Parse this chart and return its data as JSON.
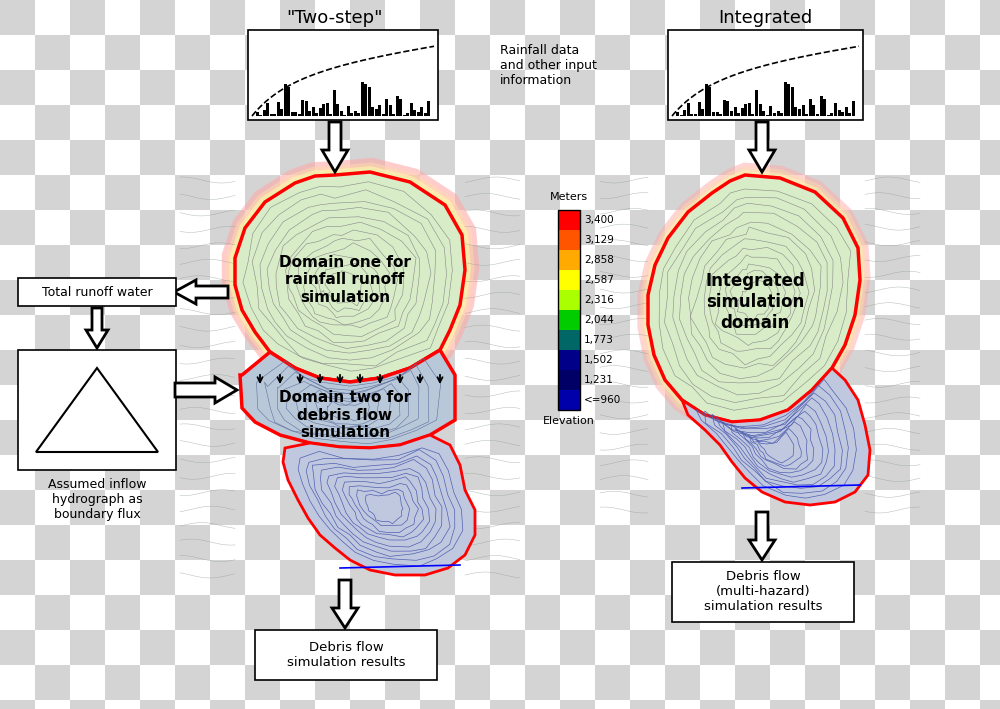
{
  "title_left": "\"Two-step\"",
  "title_right": "Integrated",
  "rainfall_label": "Rainfall data\nand other input\ninformation",
  "total_runoff_label": "Total runoff water",
  "hydrograph_label": "Assumed inflow\nhydrograph as\nboundary flux",
  "domain_one_label": "Domain one for\nrainfall runoff\nsimulation",
  "domain_two_label": "Domain two for\ndebris flow\nsimulation",
  "integrated_domain_label": "Integrated\nsimulation\ndomain",
  "debris_left_label": "Debris flow\nsimulation results",
  "debris_right_label": "Debris flow\n(multi-hazard)\nsimulation results",
  "colorbar_label": "Meters",
  "colorbar_values": [
    "3,400",
    "3,129",
    "2,858",
    "2,587",
    "2,316",
    "2,044",
    "1,773",
    "1,502",
    "1,231",
    "<=960"
  ],
  "colorbar_colors": [
    "#ff0000",
    "#ff5500",
    "#ffaa00",
    "#ffff00",
    "#aaff00",
    "#00cc00",
    "#006666",
    "#000088",
    "#000066",
    "#0000aa"
  ],
  "elevation_label": "Elevation",
  "checker_color1": "#d4d4d4",
  "checker_color2": "#ffffff",
  "checker_size": 35,
  "figsize": [
    10.0,
    7.09
  ],
  "dpi": 100
}
